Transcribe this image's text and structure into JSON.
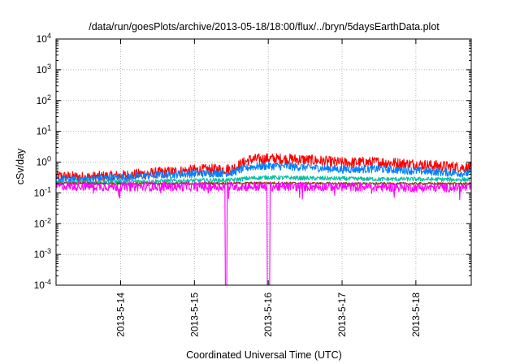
{
  "chart_data": {
    "type": "line",
    "title": "/data/run/goesPlots/archive/2013-05-18/18:00/flux/../bryn/5daysEarthData.plot",
    "xlabel": "Coordinated Universal Time (UTC)",
    "ylabel": "cSv/day",
    "y_scale": "log",
    "xlim": [
      "2013-05-13 03:00",
      "2013-05-18 18:00"
    ],
    "ylim": [
      0.0001,
      10000
    ],
    "grid": true,
    "x_tick_labels": [
      "2013-5-14",
      "2013-5-15",
      "2013-5-16",
      "2013-5-17",
      "2013-5-18"
    ],
    "y_tick_labels": [
      {
        "base": "10",
        "exp": "-4"
      },
      {
        "base": "10",
        "exp": "-3"
      },
      {
        "base": "10",
        "exp": "-2"
      },
      {
        "base": "10",
        "exp": "-1"
      },
      {
        "base": "10",
        "exp": "0"
      },
      {
        "base": "10",
        "exp": "1"
      },
      {
        "base": "10",
        "exp": "2"
      },
      {
        "base": "10",
        "exp": "3"
      },
      {
        "base": "10",
        "exp": "4"
      }
    ],
    "series": [
      {
        "color": "#ff0000",
        "x": [
          "2013-05-13 03:00",
          "2013-05-13 12:00",
          "2013-05-14 00:00",
          "2013-05-14 12:00",
          "2013-05-15 00:00",
          "2013-05-15 12:00",
          "2013-05-15 18:00",
          "2013-05-16 00:00",
          "2013-05-16 12:00",
          "2013-05-17 00:00",
          "2013-05-17 12:00",
          "2013-05-18 00:00",
          "2013-05-18 12:00",
          "2013-05-18 18:00"
        ],
        "values": [
          0.35,
          0.32,
          0.36,
          0.45,
          0.55,
          0.6,
          1.2,
          1.3,
          1.2,
          0.95,
          1.0,
          0.85,
          0.7,
          0.65
        ],
        "noise": 0.18
      },
      {
        "color": "#0080ff",
        "x": [
          "2013-05-13 03:00",
          "2013-05-13 12:00",
          "2013-05-14 00:00",
          "2013-05-14 12:00",
          "2013-05-15 00:00",
          "2013-05-15 12:00",
          "2013-05-15 18:00",
          "2013-05-16 00:00",
          "2013-05-16 12:00",
          "2013-05-17 00:00",
          "2013-05-17 12:00",
          "2013-05-18 00:00",
          "2013-05-18 12:00",
          "2013-05-18 18:00"
        ],
        "values": [
          0.27,
          0.28,
          0.32,
          0.38,
          0.42,
          0.45,
          0.7,
          0.75,
          0.68,
          0.58,
          0.6,
          0.52,
          0.45,
          0.42
        ],
        "noise": 0.13
      },
      {
        "color": "#00c0a0",
        "x": [
          "2013-05-13 03:00",
          "2013-05-13 12:00",
          "2013-05-14 00:00",
          "2013-05-14 12:00",
          "2013-05-15 00:00",
          "2013-05-15 12:00",
          "2013-05-15 18:00",
          "2013-05-16 00:00",
          "2013-05-16 12:00",
          "2013-05-17 00:00",
          "2013-05-17 12:00",
          "2013-05-18 00:00",
          "2013-05-18 12:00",
          "2013-05-18 18:00"
        ],
        "values": [
          0.22,
          0.22,
          0.23,
          0.24,
          0.25,
          0.26,
          0.3,
          0.32,
          0.3,
          0.29,
          0.28,
          0.28,
          0.27,
          0.27
        ],
        "noise": 0.07
      },
      {
        "color": "#804000",
        "x": [
          "2013-05-13 03:00",
          "2013-05-14 00:00",
          "2013-05-15 00:00",
          "2013-05-16 00:00",
          "2013-05-17 00:00",
          "2013-05-18 00:00",
          "2013-05-18 18:00"
        ],
        "values": [
          0.2,
          0.2,
          0.2,
          0.21,
          0.2,
          0.2,
          0.2
        ],
        "noise": 0.04
      },
      {
        "color": "#ff00ff",
        "x": [
          "2013-05-13 03:00",
          "2013-05-14 00:00",
          "2013-05-15 00:00",
          "2013-05-15 10:00",
          "2013-05-15 10:01",
          "2013-05-15 10:30",
          "2013-05-15 10:31",
          "2013-05-15 23:40",
          "2013-05-15 23:41",
          "2013-05-16 00:30",
          "2013-05-16 00:31",
          "2013-05-17 00:00",
          "2013-05-18 00:00",
          "2013-05-18 18:00"
        ],
        "values": [
          0.17,
          0.16,
          0.16,
          0.16,
          0.0001,
          0.0001,
          0.16,
          0.16,
          0.0001,
          0.0001,
          0.16,
          0.16,
          0.15,
          0.15
        ],
        "noise": 0.15
      }
    ]
  }
}
